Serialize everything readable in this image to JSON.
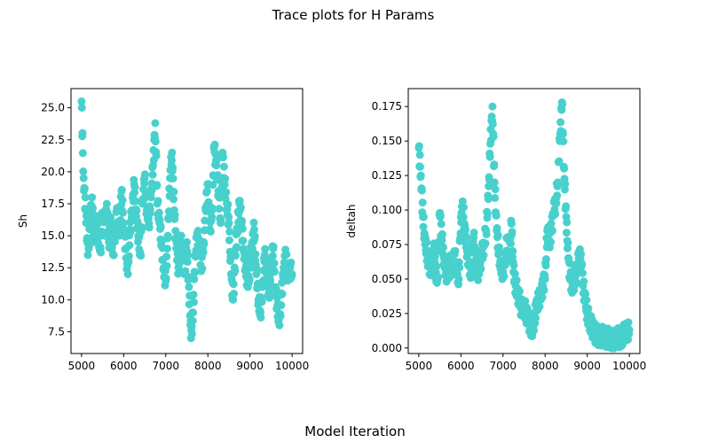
{
  "figure": {
    "title": "Trace plots for H Params",
    "xlabel": "Model Iteration"
  },
  "style": {
    "point_color": "#48D1CC",
    "axes_color": "#000000",
    "background": "#ffffff"
  },
  "chart_data": [
    {
      "type": "scatter",
      "ylabel": "Sh",
      "xlim": [
        4750,
        10250
      ],
      "ylim": [
        5.8,
        26.5
      ],
      "x_ticks": [
        5000,
        6000,
        7000,
        8000,
        9000,
        10000
      ],
      "y_ticks": [
        7.5,
        10.0,
        12.5,
        15.0,
        17.5,
        20.0,
        22.5,
        25.0
      ],
      "grid": false,
      "marker_color": "#48D1CC",
      "series": [
        {
          "x": [
            5000,
            5050,
            5100,
            5150,
            5200,
            5250,
            5300,
            5350,
            5400,
            5450,
            5500,
            5550,
            5600,
            5650,
            5700,
            5750,
            5800,
            5850,
            5900,
            5950,
            6000,
            6050,
            6100,
            6150,
            6200,
            6250,
            6300,
            6350,
            6400,
            6450,
            6500,
            6550,
            6600,
            6650,
            6700,
            6750,
            6800,
            6850,
            6900,
            6950,
            7000,
            7050,
            7100,
            7150,
            7200,
            7250,
            7300,
            7350,
            7400,
            7450,
            7500,
            7550,
            7600,
            7650,
            7700,
            7750,
            7800,
            7850,
            7900,
            7950,
            8000,
            8050,
            8100,
            8150,
            8200,
            8250,
            8300,
            8350,
            8400,
            8450,
            8500,
            8550,
            8600,
            8650,
            8700,
            8750,
            8800,
            8850,
            8900,
            8950,
            9000,
            9050,
            9100,
            9150,
            9200,
            9250,
            9300,
            9350,
            9400,
            9450,
            9500,
            9550,
            9600,
            9650,
            9700,
            9750,
            9800,
            9850,
            9900,
            9950,
            10000
          ],
          "y": [
            25.5,
            19.5,
            17.0,
            13.5,
            15.5,
            18.0,
            14.5,
            16.0,
            15.0,
            14.0,
            16.5,
            15.0,
            17.5,
            14.5,
            16.0,
            13.5,
            15.5,
            17.0,
            15.0,
            18.5,
            16.0,
            14.0,
            12.0,
            15.5,
            17.0,
            19.0,
            16.5,
            15.0,
            13.5,
            17.5,
            19.5,
            17.0,
            16.0,
            18.0,
            20.5,
            23.8,
            17.5,
            16.0,
            14.5,
            12.5,
            11.5,
            15.0,
            19.5,
            21.5,
            17.0,
            14.0,
            12.5,
            15.0,
            13.5,
            12.0,
            14.5,
            11.0,
            7.0,
            9.0,
            13.5,
            15.0,
            14.0,
            12.5,
            14.5,
            17.0,
            19.0,
            15.5,
            17.0,
            22.0,
            20.5,
            18.5,
            16.0,
            21.5,
            19.0,
            17.5,
            16.0,
            12.0,
            10.0,
            13.5,
            15.5,
            17.5,
            16.0,
            14.0,
            12.5,
            11.0,
            12.5,
            14.5,
            15.5,
            12.0,
            10.0,
            9.0,
            11.0,
            13.5,
            12.0,
            10.5,
            12.5,
            14.0,
            11.0,
            9.5,
            8.0,
            10.5,
            12.5,
            13.5,
            11.5,
            12.5,
            12.0
          ]
        }
      ]
    },
    {
      "type": "scatter",
      "ylabel": "deltah",
      "xlim": [
        4750,
        10250
      ],
      "ylim": [
        -0.004,
        0.188
      ],
      "x_ticks": [
        5000,
        6000,
        7000,
        8000,
        9000,
        10000
      ],
      "y_ticks": [
        0.0,
        0.025,
        0.05,
        0.075,
        0.1,
        0.125,
        0.15,
        0.175
      ],
      "grid": false,
      "marker_color": "#48D1CC",
      "series": [
        {
          "x": [
            5000,
            5050,
            5100,
            5150,
            5200,
            5250,
            5300,
            5350,
            5400,
            5450,
            5500,
            5550,
            5600,
            5650,
            5700,
            5750,
            5800,
            5850,
            5900,
            5950,
            6000,
            6050,
            6100,
            6150,
            6200,
            6250,
            6300,
            6350,
            6400,
            6450,
            6500,
            6550,
            6600,
            6650,
            6700,
            6750,
            6800,
            6850,
            6900,
            6950,
            7000,
            7050,
            7100,
            7150,
            7200,
            7250,
            7300,
            7350,
            7400,
            7450,
            7500,
            7550,
            7600,
            7650,
            7700,
            7750,
            7800,
            7850,
            7900,
            7950,
            8000,
            8050,
            8100,
            8150,
            8200,
            8250,
            8300,
            8350,
            8400,
            8450,
            8500,
            8550,
            8600,
            8650,
            8700,
            8750,
            8800,
            8850,
            8900,
            8950,
            9000,
            9050,
            9100,
            9150,
            9200,
            9250,
            9300,
            9350,
            9400,
            9450,
            9500,
            9550,
            9600,
            9650,
            9700,
            9750,
            9800,
            9850,
            9900,
            9950,
            10000
          ],
          "y": [
            0.145,
            0.125,
            0.095,
            0.075,
            0.068,
            0.06,
            0.058,
            0.072,
            0.055,
            0.05,
            0.098,
            0.078,
            0.065,
            0.055,
            0.052,
            0.062,
            0.058,
            0.068,
            0.055,
            0.05,
            0.095,
            0.102,
            0.082,
            0.07,
            0.06,
            0.055,
            0.08,
            0.062,
            0.055,
            0.06,
            0.068,
            0.075,
            0.085,
            0.108,
            0.148,
            0.175,
            0.12,
            0.085,
            0.07,
            0.06,
            0.055,
            0.06,
            0.08,
            0.065,
            0.09,
            0.055,
            0.045,
            0.04,
            0.033,
            0.028,
            0.03,
            0.025,
            0.02,
            0.016,
            0.014,
            0.022,
            0.03,
            0.035,
            0.04,
            0.045,
            0.05,
            0.085,
            0.078,
            0.085,
            0.098,
            0.105,
            0.12,
            0.15,
            0.178,
            0.13,
            0.095,
            0.065,
            0.05,
            0.045,
            0.05,
            0.055,
            0.065,
            0.068,
            0.045,
            0.035,
            0.025,
            0.02,
            0.016,
            0.012,
            0.01,
            0.009,
            0.008,
            0.009,
            0.008,
            0.007,
            0.008,
            0.006,
            0.007,
            0.006,
            0.007,
            0.008,
            0.006,
            0.01,
            0.011,
            0.012,
            0.013
          ]
        }
      ]
    }
  ]
}
